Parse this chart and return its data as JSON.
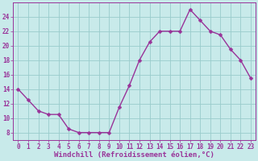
{
  "x": [
    0,
    1,
    2,
    3,
    4,
    5,
    6,
    7,
    8,
    9,
    10,
    11,
    12,
    13,
    14,
    15,
    16,
    17,
    18,
    19,
    20,
    21,
    22,
    23
  ],
  "y": [
    14,
    12.5,
    11,
    10.5,
    10.5,
    8.5,
    8,
    8,
    8,
    8,
    11.5,
    14.5,
    18,
    20.5,
    22,
    22,
    22,
    25,
    23.5,
    22,
    21.5,
    19.5,
    18,
    15.5
  ],
  "line_color": "#993399",
  "marker_color": "#993399",
  "bg_color": "#c8eaea",
  "grid_color": "#99cccc",
  "xlabel": "Windchill (Refroidissement éolien,°C)",
  "xlabel_color": "#993399",
  "ylim": [
    7,
    26
  ],
  "xlim": [
    -0.5,
    23.5
  ],
  "yticks": [
    8,
    10,
    12,
    14,
    16,
    18,
    20,
    22,
    24
  ],
  "xticks": [
    0,
    1,
    2,
    3,
    4,
    5,
    6,
    7,
    8,
    9,
    10,
    11,
    12,
    13,
    14,
    15,
    16,
    17,
    18,
    19,
    20,
    21,
    22,
    23
  ],
  "tick_fontsize": 5.5,
  "xlabel_fontsize": 6.5,
  "line_width": 1.0,
  "marker_size": 2.5
}
